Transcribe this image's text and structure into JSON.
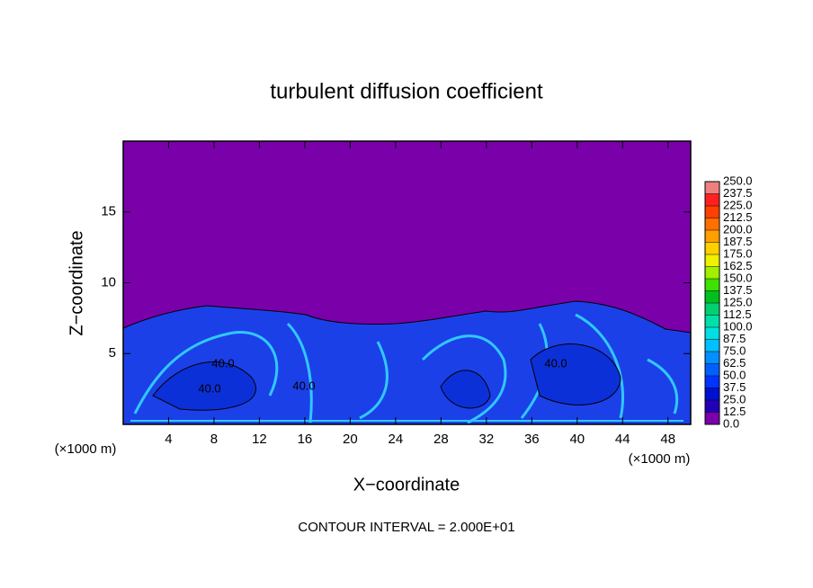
{
  "chart_data": {
    "type": "contour",
    "title": "turbulent diffusion coefficient",
    "x_label": "X−coordinate",
    "y_label": "Z−coordinate",
    "x_unit_left": "(×1000 m)",
    "x_unit_right": "(×1000 m)",
    "note": "CONTOUR INTERVAL = 2.000E+01",
    "xlim": [
      0,
      50
    ],
    "xticks": [
      4,
      8,
      12,
      16,
      20,
      24,
      28,
      32,
      36,
      40,
      44,
      48
    ],
    "ylim": [
      0,
      20
    ],
    "yticks": [
      5,
      10,
      15
    ],
    "contour_labels": [
      "40.0",
      "40.0",
      "40.0",
      "40.0"
    ],
    "colorbar": {
      "lim": [
        0,
        250
      ],
      "ticks": [
        {
          "value": 0,
          "label": "0.0"
        },
        12.5,
        {
          "value": 25,
          "label": "25.0"
        },
        37.5,
        {
          "value": 50,
          "label": "50.0"
        },
        62.5,
        {
          "value": 75,
          "label": "75.0"
        },
        87.5,
        {
          "value": 100,
          "label": "100.0"
        },
        112.5,
        {
          "value": 125,
          "label": "125.0"
        },
        137.5,
        {
          "value": 150,
          "label": "150.0"
        },
        162.5,
        {
          "value": 175,
          "label": "175.0"
        },
        187.5,
        {
          "value": 200,
          "label": "200.0"
        },
        212.5,
        {
          "value": 225,
          "label": "225.0"
        },
        237.5,
        {
          "value": 250,
          "label": "250.0"
        }
      ],
      "colors": [
        "#7a00aa",
        "#2200b8",
        "#0010d0",
        "#0034ff",
        "#0060ff",
        "#0090ff",
        "#00c0ff",
        "#00e0e0",
        "#00e0a8",
        "#00d070",
        "#00c020",
        "#40e000",
        "#a0f000",
        "#f0f000",
        "#ffd000",
        "#ffa000",
        "#ff7000",
        "#ff4000",
        "#ff2020",
        "#f08080"
      ]
    }
  }
}
